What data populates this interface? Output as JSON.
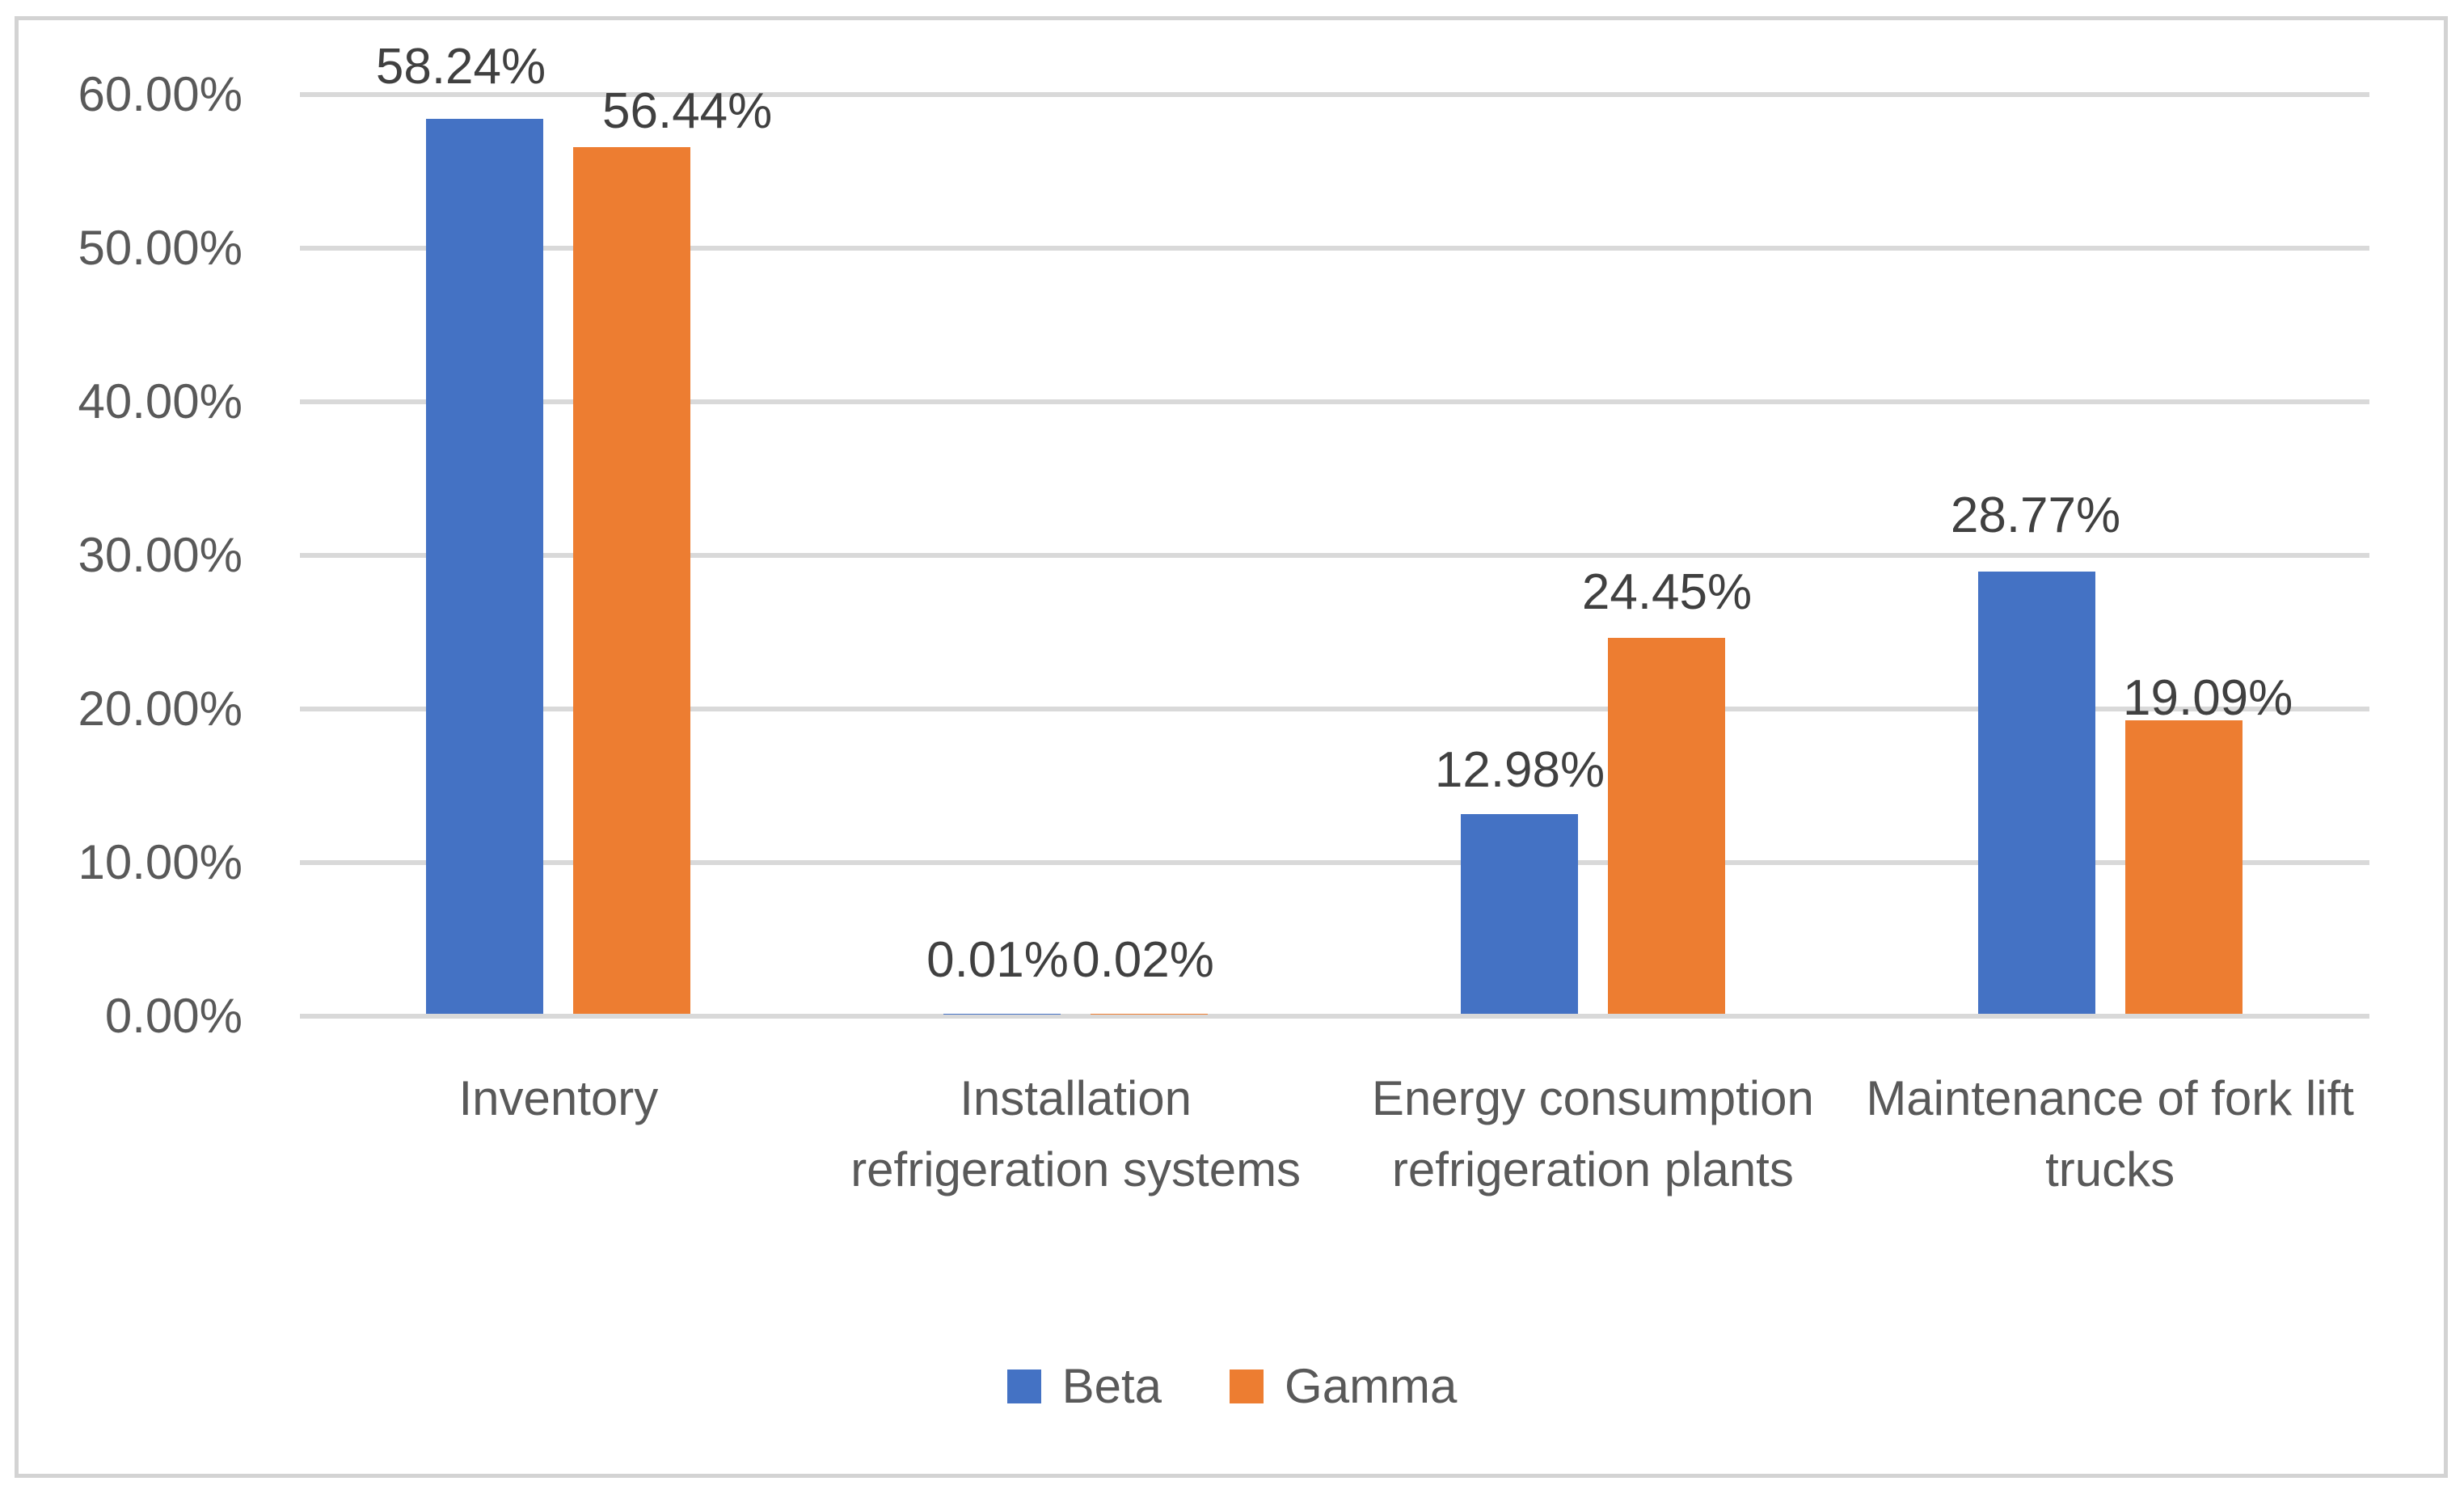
{
  "chart_data": {
    "type": "bar",
    "title": "",
    "categories": [
      "Inventory",
      "Installation refrigeration systems",
      "Energy consumption refrigeration plants",
      "Maintenance of fork lift trucks"
    ],
    "series": [
      {
        "name": "Beta",
        "color": "#4472C4",
        "values": [
          58.24,
          0.01,
          12.98,
          28.77
        ],
        "labels": [
          "58.24%",
          "0.01%",
          "12.98%",
          "28.77%"
        ]
      },
      {
        "name": "Gamma",
        "color": "#ED7D31",
        "values": [
          56.44,
          0.02,
          24.45,
          19.09
        ],
        "labels": [
          "56.44%",
          "0.02%",
          "24.45%",
          "19.09%"
        ]
      }
    ],
    "y_axis": {
      "min": 0,
      "max": 60,
      "ticks": [
        {
          "label": "60.00%",
          "value": 60
        },
        {
          "label": "50.00%",
          "value": 50
        },
        {
          "label": "40.00%",
          "value": 40
        },
        {
          "label": "30.00%",
          "value": 30
        },
        {
          "label": "20.00%",
          "value": 20
        },
        {
          "label": "10.00%",
          "value": 10
        },
        {
          "label": "0.00%",
          "value": 0
        }
      ]
    },
    "grid": true,
    "legend_position": "bottom",
    "colors": {
      "grid": "#D9D9D9",
      "frame_border": "#D3D3D3",
      "axis_text": "#595959",
      "data_label_text": "#404040",
      "background": "#FFFFFF"
    }
  }
}
